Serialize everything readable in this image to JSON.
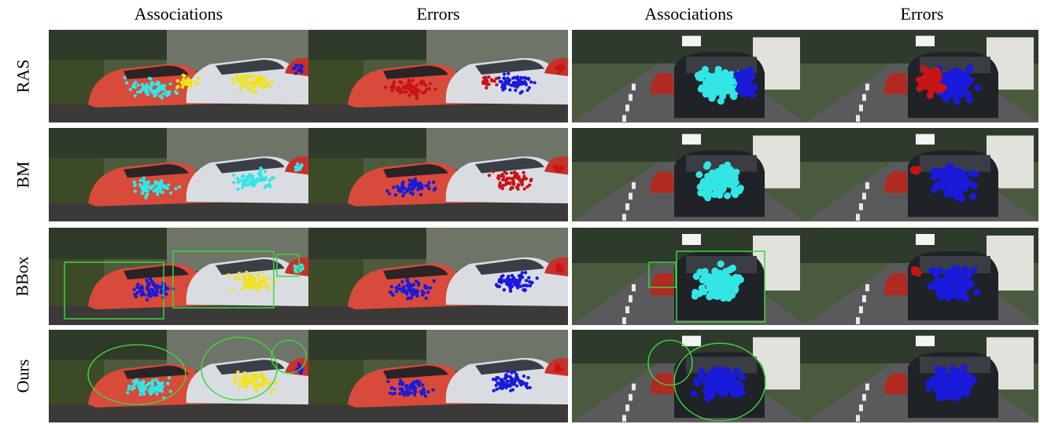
{
  "figure": {
    "column_headers": [
      "Associations",
      "Errors",
      "Associations",
      "Errors"
    ],
    "row_labels": [
      "RAS",
      "BM",
      "BBox",
      "Ours"
    ],
    "point_colors": {
      "cyan": "#33e6e6",
      "yellow": "#f2e21b",
      "blue": "#1a1adb",
      "red": "#c81414",
      "box_green": "#3ed43e"
    },
    "scenes": {
      "left": "street scene: red car, white car, distant red car",
      "right": "road scene: dark hatchback seen from behind, red car on left"
    }
  }
}
